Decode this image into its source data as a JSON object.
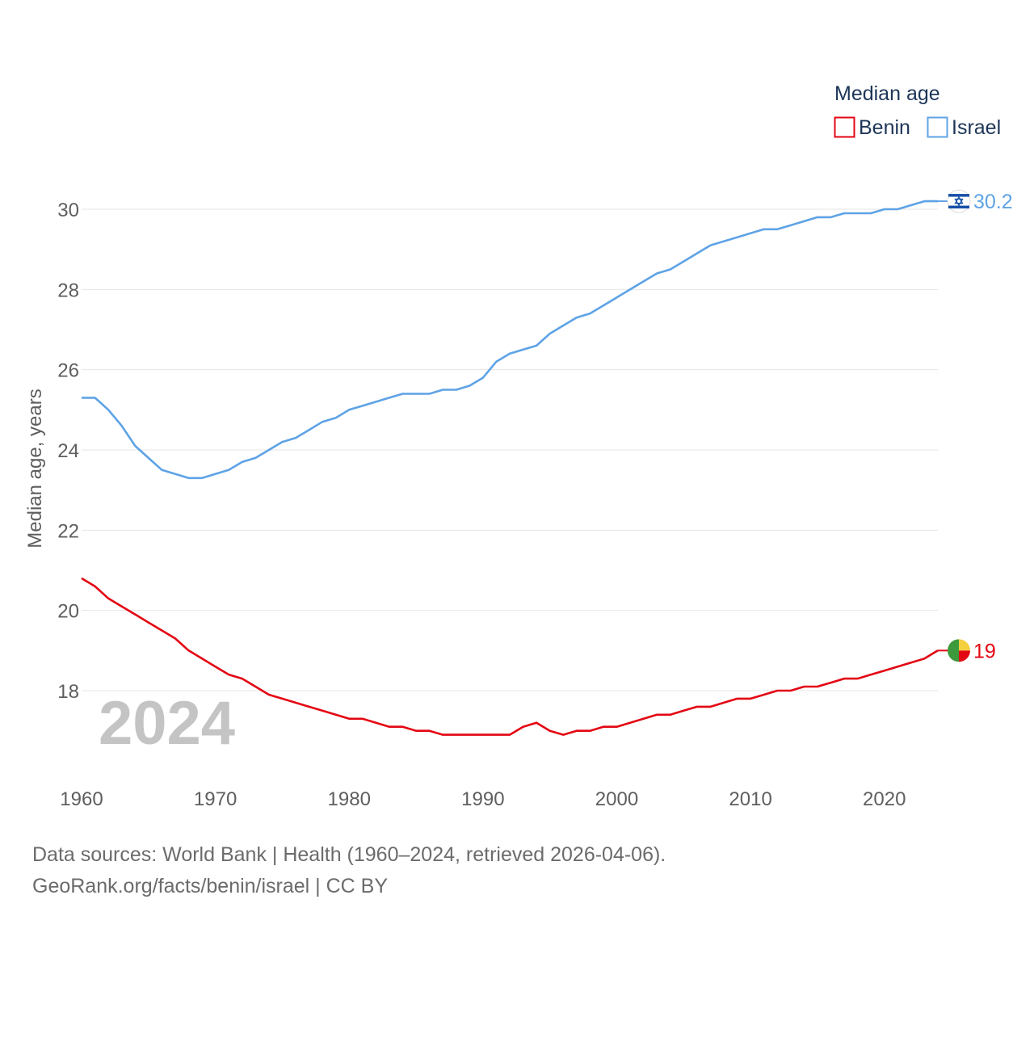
{
  "chart_data": {
    "type": "line",
    "ylabel": "Median age, years",
    "xlabel": "",
    "xlim": [
      1960,
      2024
    ],
    "ylim": [
      16.4,
      31.2
    ],
    "y_ticks": [
      18,
      20,
      22,
      24,
      26,
      28,
      30
    ],
    "x_ticks": [
      1960,
      1970,
      1980,
      1990,
      2000,
      2010,
      2020
    ],
    "grid": true,
    "legend_title": "Median age",
    "legend_position": "top-right",
    "year_watermark": "2024",
    "x": [
      1960,
      1961,
      1962,
      1963,
      1964,
      1965,
      1966,
      1967,
      1968,
      1969,
      1970,
      1971,
      1972,
      1973,
      1974,
      1975,
      1976,
      1977,
      1978,
      1979,
      1980,
      1981,
      1982,
      1983,
      1984,
      1985,
      1986,
      1987,
      1988,
      1989,
      1990,
      1991,
      1992,
      1993,
      1994,
      1995,
      1996,
      1997,
      1998,
      1999,
      2000,
      2001,
      2002,
      2003,
      2004,
      2005,
      2006,
      2007,
      2008,
      2009,
      2010,
      2011,
      2012,
      2013,
      2014,
      2015,
      2016,
      2017,
      2018,
      2019,
      2020,
      2021,
      2022,
      2023,
      2024
    ],
    "series": [
      {
        "name": "Benin",
        "color": "#e30613",
        "end_label": "19",
        "flag_icon": "benin-flag-icon",
        "values": [
          20.8,
          20.6,
          20.3,
          20.1,
          19.9,
          19.7,
          19.5,
          19.3,
          19.0,
          18.8,
          18.6,
          18.4,
          18.3,
          18.1,
          17.9,
          17.8,
          17.7,
          17.6,
          17.5,
          17.4,
          17.3,
          17.3,
          17.2,
          17.1,
          17.1,
          17.0,
          17.0,
          16.9,
          16.9,
          16.9,
          16.9,
          16.9,
          16.9,
          17.1,
          17.2,
          17.0,
          16.9,
          17.0,
          17.0,
          17.1,
          17.1,
          17.2,
          17.3,
          17.4,
          17.4,
          17.5,
          17.6,
          17.6,
          17.7,
          17.8,
          17.8,
          17.9,
          18.0,
          18.0,
          18.1,
          18.1,
          18.2,
          18.3,
          18.3,
          18.4,
          18.5,
          18.6,
          18.7,
          18.8,
          19.0
        ]
      },
      {
        "name": "Israel",
        "color": "#5ea3e6",
        "end_label": "30.2",
        "flag_icon": "israel-flag-icon",
        "values": [
          25.3,
          25.3,
          25.0,
          24.6,
          24.1,
          23.8,
          23.5,
          23.4,
          23.3,
          23.3,
          23.4,
          23.5,
          23.7,
          23.8,
          24.0,
          24.2,
          24.3,
          24.5,
          24.7,
          24.8,
          25.0,
          25.1,
          25.2,
          25.3,
          25.4,
          25.4,
          25.4,
          25.5,
          25.5,
          25.6,
          25.8,
          26.2,
          26.4,
          26.5,
          26.6,
          26.9,
          27.1,
          27.3,
          27.4,
          27.6,
          27.8,
          28.0,
          28.2,
          28.4,
          28.5,
          28.7,
          28.9,
          29.1,
          29.2,
          29.3,
          29.4,
          29.5,
          29.5,
          29.6,
          29.7,
          29.8,
          29.8,
          29.9,
          29.9,
          29.9,
          30.0,
          30.0,
          30.1,
          30.2,
          30.2
        ]
      }
    ]
  },
  "footer": {
    "sources": "Data sources: World Bank | Health (1960–2024, retrieved 2026-04-06).",
    "credit": "GeoRank.org/facts/benin/israel | CC BY"
  }
}
